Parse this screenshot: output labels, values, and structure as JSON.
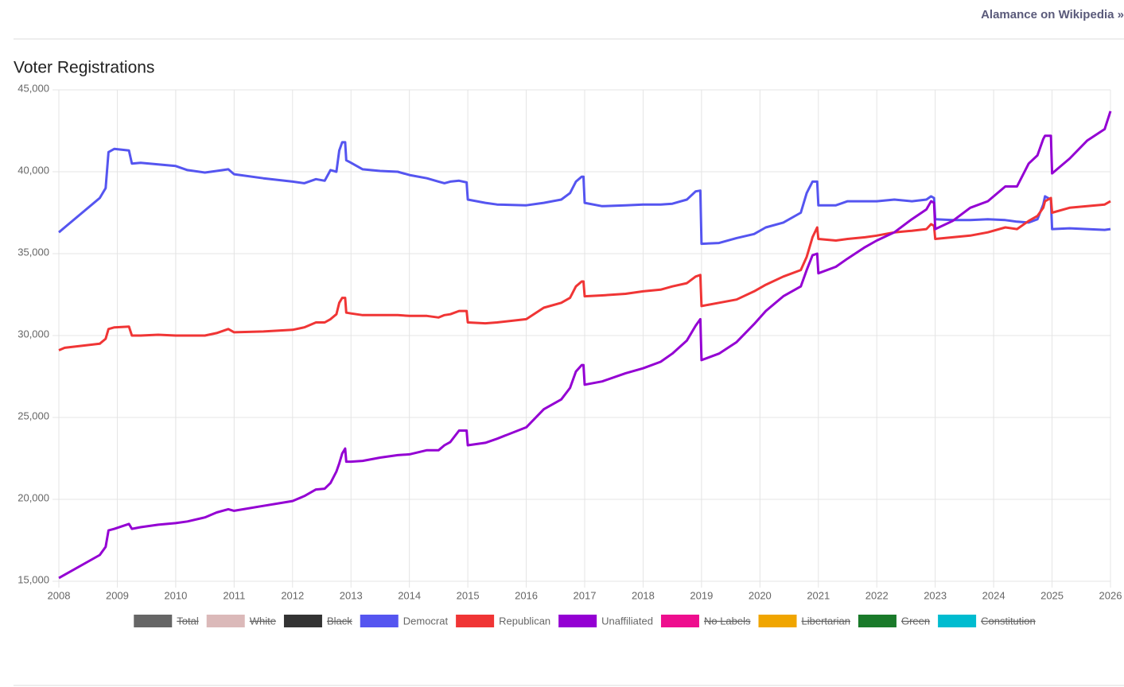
{
  "header": {
    "link": "Alamance on Wikipedia »"
  },
  "chart_data": {
    "type": "line",
    "title": "Voter Registrations",
    "x": [
      2008,
      2008.1,
      2008.7,
      2008.8,
      2008.85,
      2008.95,
      2009.2,
      2009.25,
      2009.4,
      2009.7,
      2010,
      2010.2,
      2010.5,
      2010.7,
      2010.9,
      2011,
      2011.5,
      2012,
      2012.2,
      2012.4,
      2012.55,
      2012.65,
      2012.75,
      2012.8,
      2012.85,
      2012.9,
      2012.92,
      2013,
      2013.2,
      2013.5,
      2013.8,
      2014,
      2014.3,
      2014.5,
      2014.6,
      2014.7,
      2014.85,
      2014.98,
      2015,
      2015.3,
      2015.5,
      2016,
      2016.3,
      2016.6,
      2016.75,
      2016.85,
      2016.95,
      2016.98,
      2017,
      2017.3,
      2017.7,
      2018,
      2018.3,
      2018.5,
      2018.75,
      2018.9,
      2018.98,
      2019,
      2019.3,
      2019.6,
      2019.9,
      2020.1,
      2020.4,
      2020.7,
      2020.8,
      2020.9,
      2020.98,
      2021,
      2021.3,
      2021.5,
      2021.8,
      2022,
      2022.3,
      2022.6,
      2022.85,
      2022.93,
      2022.98,
      2023,
      2023.3,
      2023.6,
      2023.9,
      2024.2,
      2024.4,
      2024.6,
      2024.75,
      2024.85,
      2024.88,
      2024.98,
      2025,
      2025.3,
      2025.6,
      2025.9,
      2026
    ],
    "series": [
      {
        "name": "Total",
        "color": "#666666",
        "hidden": true
      },
      {
        "name": "White",
        "color": "#dbb9b9",
        "hidden": true
      },
      {
        "name": "Black",
        "color": "#333333",
        "hidden": true
      },
      {
        "name": "Democrat",
        "color": "#5555f0",
        "values": [
          36300,
          36600,
          38400,
          39000,
          41200,
          41400,
          41300,
          40500,
          40550,
          40450,
          40350,
          40100,
          39950,
          40050,
          40150,
          39850,
          39600,
          39400,
          39300,
          39550,
          39450,
          40100,
          40000,
          41300,
          41800,
          41800,
          40700,
          40550,
          40150,
          40050,
          40000,
          39800,
          39600,
          39400,
          39300,
          39400,
          39450,
          39350,
          38300,
          38100,
          38000,
          37950,
          38100,
          38300,
          38700,
          39400,
          39700,
          39700,
          38100,
          37900,
          37950,
          38000,
          38000,
          38050,
          38300,
          38800,
          38850,
          35600,
          35650,
          35950,
          36200,
          36600,
          36900,
          37500,
          38700,
          39400,
          39400,
          37950,
          37950,
          38200,
          38200,
          38200,
          38300,
          38200,
          38300,
          38500,
          38400,
          37100,
          37050,
          37050,
          37100,
          37050,
          36950,
          36900,
          37100,
          38000,
          38500,
          38300,
          36500,
          36550,
          36500,
          36450,
          36500
        ]
      },
      {
        "name": "Republican",
        "color": "#f03535",
        "values": [
          29100,
          29250,
          29500,
          29800,
          30400,
          30500,
          30550,
          30000,
          30000,
          30050,
          30000,
          30000,
          30000,
          30150,
          30400,
          30200,
          30250,
          30350,
          30500,
          30800,
          30800,
          31000,
          31300,
          32000,
          32300,
          32300,
          31400,
          31350,
          31250,
          31250,
          31250,
          31200,
          31200,
          31100,
          31250,
          31300,
          31500,
          31500,
          30800,
          30750,
          30800,
          31000,
          31700,
          32000,
          32300,
          33000,
          33300,
          33300,
          32400,
          32450,
          32550,
          32700,
          32800,
          33000,
          33200,
          33600,
          33700,
          31800,
          32000,
          32200,
          32700,
          33100,
          33600,
          34000,
          34800,
          36000,
          36600,
          35900,
          35800,
          35900,
          36000,
          36100,
          36300,
          36400,
          36500,
          36800,
          36700,
          35900,
          36000,
          36100,
          36300,
          36600,
          36500,
          37000,
          37300,
          37800,
          38200,
          38400,
          37500,
          37800,
          37900,
          38000,
          38200
        ]
      },
      {
        "name": "Unaffiliated",
        "color": "#9400d3",
        "values": [
          15200,
          15400,
          16600,
          17100,
          18100,
          18200,
          18500,
          18200,
          18300,
          18450,
          18550,
          18650,
          18900,
          19200,
          19400,
          19300,
          19600,
          19900,
          20200,
          20600,
          20650,
          21000,
          21700,
          22200,
          22800,
          23100,
          22300,
          22300,
          22350,
          22550,
          22700,
          22750,
          23000,
          23000,
          23300,
          23500,
          24200,
          24200,
          23300,
          23450,
          23700,
          24400,
          25500,
          26100,
          26800,
          27800,
          28200,
          28200,
          27000,
          27200,
          27700,
          28000,
          28400,
          28900,
          29700,
          30600,
          31000,
          28500,
          28900,
          29600,
          30700,
          31500,
          32400,
          33000,
          34000,
          34900,
          35000,
          33800,
          34200,
          34700,
          35400,
          35800,
          36300,
          37100,
          37700,
          38200,
          38100,
          36500,
          37000,
          37800,
          38200,
          39100,
          39100,
          40500,
          41000,
          42000,
          42200,
          42200,
          39900,
          40800,
          41900,
          42600,
          43700
        ]
      },
      {
        "name": "No Labels",
        "color": "#ee0e8e",
        "hidden": true
      },
      {
        "name": "Libertarian",
        "color": "#f0a500",
        "hidden": true
      },
      {
        "name": "Green",
        "color": "#1a7a2a",
        "hidden": true
      },
      {
        "name": "Constitution",
        "color": "#00bcd0",
        "hidden": true
      }
    ],
    "xlim": [
      2008,
      2026
    ],
    "xticks": [
      2008,
      2009,
      2010,
      2011,
      2012,
      2013,
      2014,
      2015,
      2016,
      2017,
      2018,
      2019,
      2020,
      2021,
      2022,
      2023,
      2024,
      2025,
      2026
    ],
    "ylim": [
      15000,
      45000
    ],
    "yticks": [
      {
        "value": 15000,
        "label": "15,000"
      },
      {
        "value": 20000,
        "label": "20,000"
      },
      {
        "value": 25000,
        "label": "25,000"
      },
      {
        "value": 30000,
        "label": "30,000"
      },
      {
        "value": 35000,
        "label": "35,000"
      },
      {
        "value": 40000,
        "label": "40,000"
      },
      {
        "value": 45000,
        "label": "45,000"
      }
    ],
    "grid": true,
    "legend": "bottom"
  }
}
